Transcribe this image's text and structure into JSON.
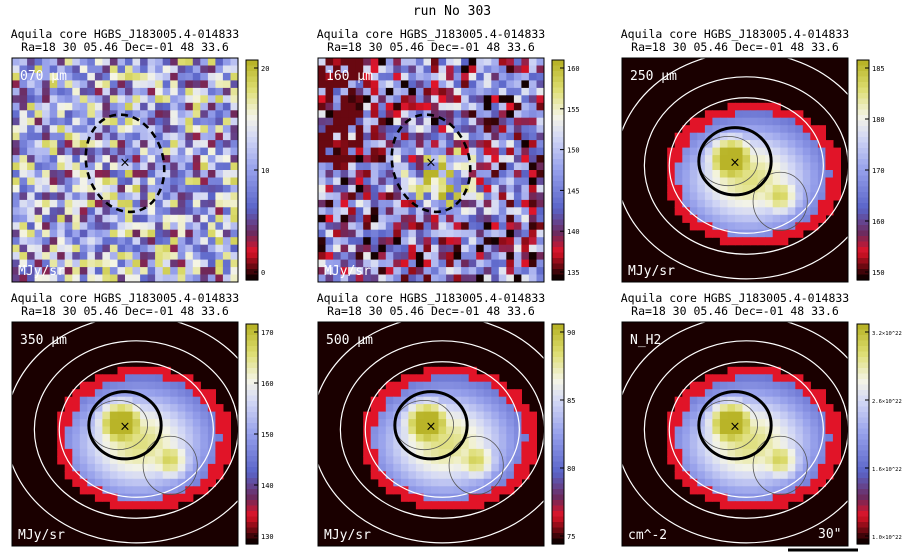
{
  "run_title": "run No 303",
  "panels": [
    {
      "title1": "Aquila core HGBS_J183005.4-014833",
      "title2": "Ra=18 30 05.46 Dec=-01 48 33.6",
      "band_label": "070 μm",
      "unit_label": "MJy/sr",
      "colorbar_ticks": [
        "20",
        "10",
        "0"
      ],
      "map_style": "noisy",
      "ellipse_style": "dashed"
    },
    {
      "title1": "Aquila core HGBS_J183005.4-014833",
      "title2": "Ra=18 30 05.46 Dec=-01 48 33.6",
      "band_label": "160 μm",
      "unit_label": "MJy/sr",
      "colorbar_ticks": [
        "160",
        "155",
        "150",
        "145",
        "140",
        "135"
      ],
      "map_style": "noisy160",
      "ellipse_style": "dashed"
    },
    {
      "title1": "Aquila core HGBS_J183005.4-014833",
      "title2": "Ra=18 30 05.46 Dec=-01 48 33.6",
      "band_label": "250 μm",
      "unit_label": "MJy/sr",
      "colorbar_ticks": [
        "185",
        "180",
        "170",
        "160",
        "150"
      ],
      "map_style": "smooth",
      "ellipse_style": "solid"
    },
    {
      "title1": "Aquila core HGBS_J183005.4-014833",
      "title2": "Ra=18 30 05.46 Dec=-01 48 33.6",
      "band_label": "350 μm",
      "unit_label": "MJy/sr",
      "colorbar_ticks": [
        "170",
        "160",
        "150",
        "140",
        "130"
      ],
      "map_style": "smooth",
      "ellipse_style": "solid"
    },
    {
      "title1": "Aquila core HGBS_J183005.4-014833",
      "title2": "Ra=18 30 05.46 Dec=-01 48 33.6",
      "band_label": "500 μm",
      "unit_label": "MJy/sr",
      "colorbar_ticks": [
        "90",
        "85",
        "80",
        "75"
      ],
      "map_style": "smooth",
      "ellipse_style": "solid"
    },
    {
      "title1": "Aquila core HGBS_J183005.4-014833",
      "title2": "Ra=18 30 05.46 Dec=-01 48 33.6",
      "band_label": "N_H2",
      "unit_label": "cm^-2",
      "colorbar_ticks": [
        "3.2×10^22",
        "2.6×10^22",
        "1.6×10^22",
        "1.0×10^22"
      ],
      "map_style": "smooth",
      "ellipse_style": "solid",
      "scale_bar_label": "30\""
    }
  ],
  "center_marker": "×"
}
